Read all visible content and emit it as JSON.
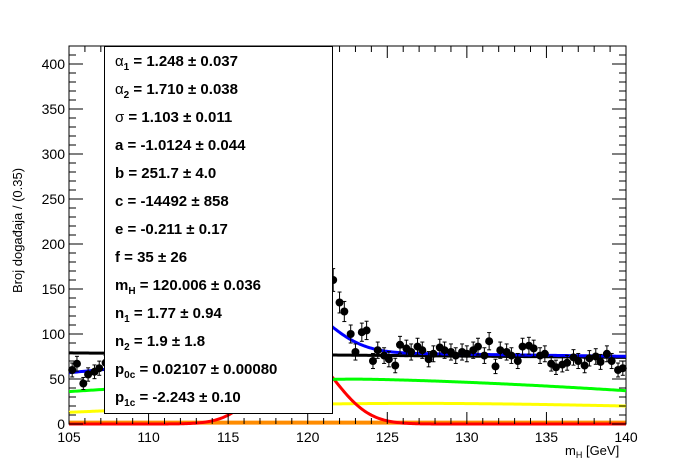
{
  "chart_data": {
    "type": "scatter",
    "xlabel_main": "m",
    "xlabel_sub": "H",
    "xlabel_unit": " [GeV]",
    "ylabel": "Broj događaja / (0.35)",
    "xlim": [
      105,
      140
    ],
    "ylim": [
      0,
      420
    ],
    "xticks": [
      "105",
      "110",
      "115",
      "120",
      "125",
      "130",
      "135",
      "140"
    ],
    "yticks": [
      "0",
      "50",
      "100",
      "150",
      "200",
      "250",
      "300",
      "350",
      "400"
    ],
    "colors": {
      "data": "#000000",
      "total_fit": "#0000ff",
      "background_black": "#000000",
      "green": "#00ff00",
      "yellow": "#ffff00",
      "red": "#ff0000",
      "orange": "#ff8c00"
    },
    "data_points": {
      "x": [
        105.2,
        105.5,
        105.9,
        106.2,
        106.6,
        106.9,
        107.3,
        107.6,
        108.0,
        108.3,
        108.7,
        109.0,
        109.4,
        109.7,
        110.1,
        110.4,
        110.8,
        111.1,
        111.5,
        111.8,
        112.2,
        112.5,
        112.9,
        113.2,
        113.6,
        113.9,
        114.3,
        114.6,
        115.0,
        115.3,
        115.7,
        116.0,
        116.4,
        116.7,
        117.1,
        117.4,
        117.8,
        118.1,
        118.5,
        118.8,
        119.2,
        119.5,
        119.9,
        120.2,
        120.6,
        120.9,
        121.3,
        121.6,
        122.0,
        122.3,
        122.7,
        123.0,
        123.4,
        123.7,
        124.1,
        124.4,
        124.8,
        125.1,
        125.5,
        125.8,
        126.2,
        126.5,
        126.9,
        127.2,
        127.6,
        127.9,
        128.3,
        128.6,
        129.0,
        129.3,
        129.7,
        130.0,
        130.4,
        130.7,
        131.1,
        131.4,
        131.8,
        132.1,
        132.5,
        132.8,
        133.2,
        133.5,
        133.9,
        134.2,
        134.6,
        134.9,
        135.3,
        135.6,
        136.0,
        136.3,
        136.7,
        137.0,
        137.4,
        137.7,
        138.1,
        138.4,
        138.8,
        139.1,
        139.5,
        139.8
      ],
      "y": [
        60,
        67,
        45,
        55,
        58,
        62,
        68,
        70,
        72,
        75,
        80,
        85,
        90,
        92,
        96,
        100,
        105,
        108,
        112,
        116,
        120,
        124,
        130,
        134,
        138,
        142,
        146,
        150,
        155,
        158,
        160,
        162,
        165,
        168,
        170,
        172,
        168,
        165,
        160,
        158,
        150,
        145,
        140,
        135,
        145,
        148,
        155,
        160,
        135,
        125,
        100,
        80,
        102,
        104,
        70,
        82,
        76,
        72,
        65,
        88,
        84,
        80,
        86,
        82,
        72,
        78,
        85,
        82,
        80,
        76,
        80,
        78,
        82,
        86,
        76,
        92,
        64,
        82,
        80,
        76,
        70,
        86,
        87,
        84,
        76,
        78,
        67,
        63,
        66,
        68,
        74,
        70,
        65,
        73,
        75,
        69,
        78,
        70,
        60,
        62
      ]
    },
    "curves": {
      "fit_params": {
        "background_line": {
          "a": 74,
          "b": 79
        },
        "green_peak": 50,
        "green_end": 37,
        "yellow_level": 13,
        "yellow_end": 20,
        "red_peak": 80,
        "red_center": 119.5,
        "red_sigma": 2.2,
        "peak_height": 60,
        "peak_center": 118.5,
        "peak_sigma": 2.5
      }
    },
    "params": [
      {
        "sym": "α",
        "sub": "1",
        "text": " =  1.248  ± 0.037"
      },
      {
        "sym": "α",
        "sub": "2",
        "text": " =  1.710  ± 0.038"
      },
      {
        "sym": "σ",
        "sub": "",
        "text": "  =  1.103  ± 0.011"
      },
      {
        "sym": "a",
        "sub": "",
        "text": " = -1.0124  ± 0.044"
      },
      {
        "sym": "b",
        "sub": "",
        "text": " =  251.7  ± 4.0"
      },
      {
        "sym": "c",
        "sub": "",
        "text": " = -14492  ± 858"
      },
      {
        "sym": "e",
        "sub": "",
        "text": " = -0.211  ± 0.17"
      },
      {
        "sym": "f",
        "sub": "",
        "text": " =  35  ± 26"
      },
      {
        "sym": "m",
        "sub": "H",
        "text": " =  120.006  ± 0.036"
      },
      {
        "sym": "n",
        "sub": "1",
        "text": " =  1.77  ± 0.94"
      },
      {
        "sym": "n",
        "sub": "2",
        "text": " =  1.9  ± 1.8"
      },
      {
        "sym": "p",
        "sub": "0c",
        "text": " =  0.02107  ± 0.00080"
      },
      {
        "sym": "p",
        "sub": "1c",
        "text": " = -2.243  ± 0.10"
      }
    ]
  }
}
